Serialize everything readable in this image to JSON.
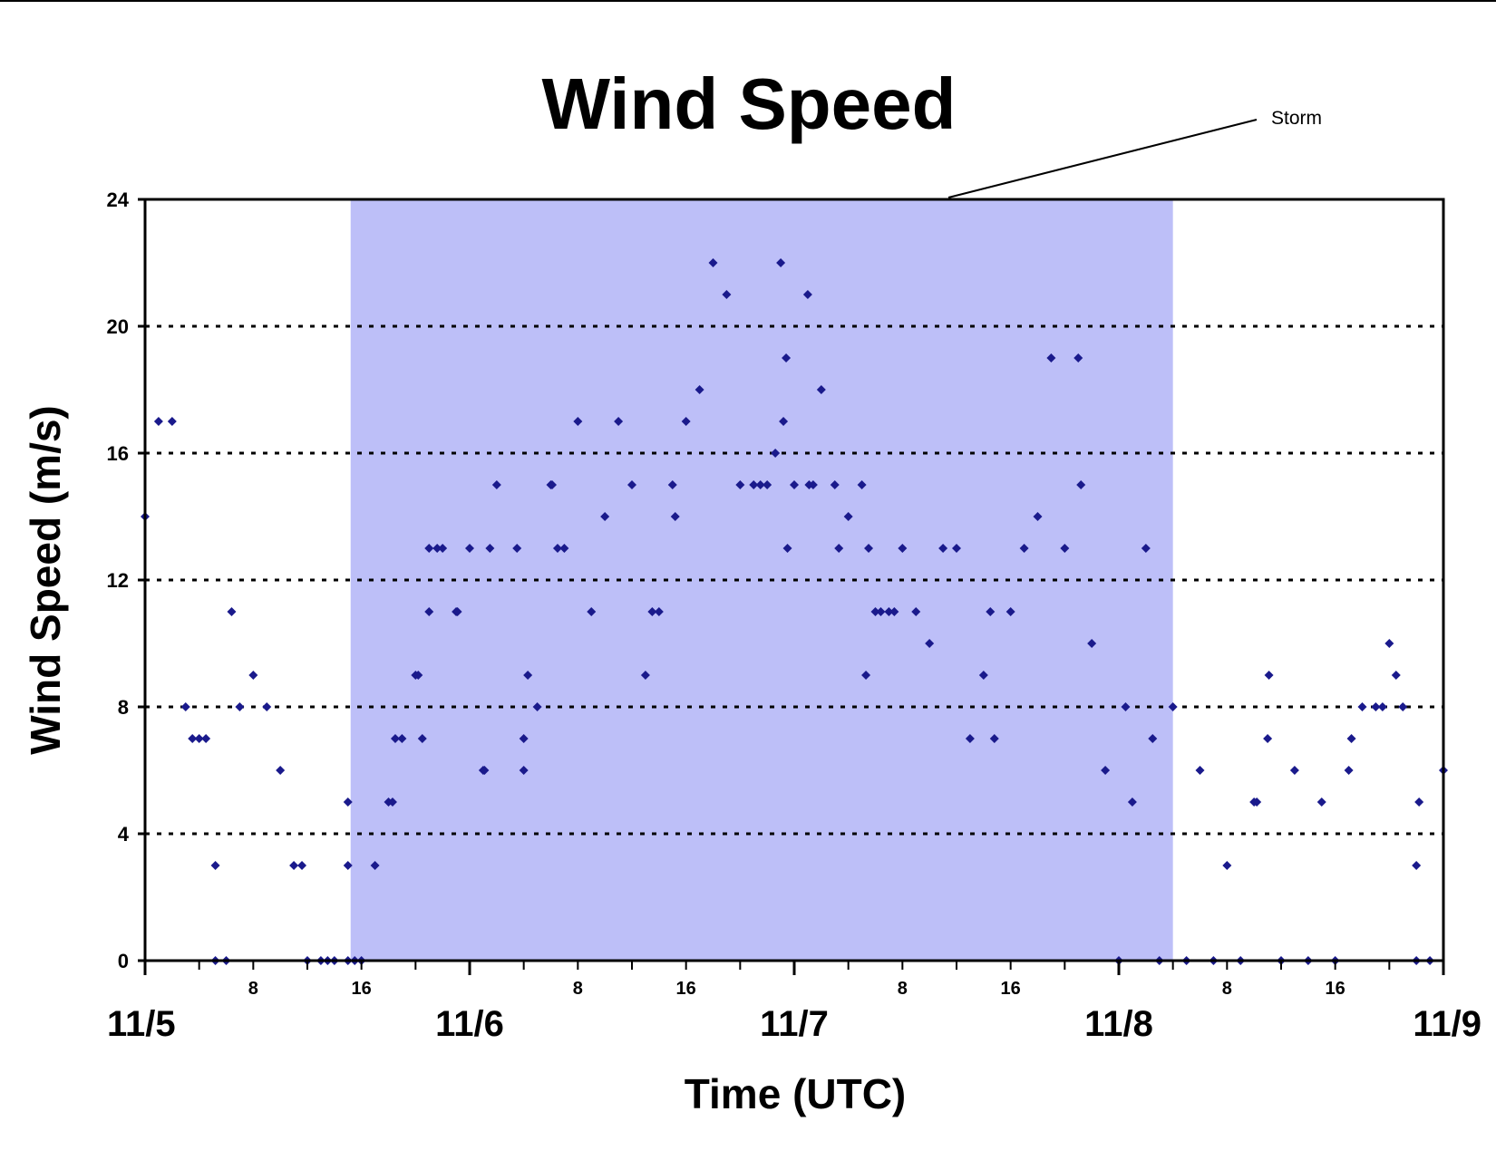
{
  "chart_data": {
    "type": "scatter",
    "title": "Wind Speed",
    "xlabel": "Time (UTC)",
    "ylabel": "Wind Speed (m/s)",
    "xlim": [
      0,
      96
    ],
    "ylim": [
      0,
      24
    ],
    "yticks": [
      0,
      4,
      8,
      12,
      16,
      20,
      24
    ],
    "x_minor_ticks": [
      {
        "x": 8,
        "label": "8"
      },
      {
        "x": 16,
        "label": "16"
      },
      {
        "x": 32,
        "label": "8"
      },
      {
        "x": 40,
        "label": "16"
      },
      {
        "x": 56,
        "label": "8"
      },
      {
        "x": 64,
        "label": "16"
      },
      {
        "x": 80,
        "label": "8"
      },
      {
        "x": 88,
        "label": "16"
      }
    ],
    "x_major_labels": [
      {
        "x": 0,
        "label": "11/5"
      },
      {
        "x": 24,
        "label": "11/6"
      },
      {
        "x": 48,
        "label": "11/7"
      },
      {
        "x": 72,
        "label": "11/8"
      },
      {
        "x": 96,
        "label": "11/9"
      }
    ],
    "grid": "horizontal dotted",
    "marker_color": "#1a1a8c",
    "shading": {
      "label": "Storm",
      "x_start": 15.2,
      "x_end": 76,
      "color": "#bdbff8"
    },
    "annotation": {
      "text": "Storm"
    },
    "x_unit": "hours since 11/5 00:00 UTC",
    "points": [
      [
        0,
        14
      ],
      [
        1,
        17
      ],
      [
        2,
        17
      ],
      [
        3,
        8
      ],
      [
        3.5,
        7
      ],
      [
        4,
        7
      ],
      [
        4.5,
        7
      ],
      [
        5.2,
        3
      ],
      [
        5.2,
        0
      ],
      [
        6,
        0
      ],
      [
        6.4,
        11
      ],
      [
        7,
        8
      ],
      [
        8,
        9
      ],
      [
        9,
        8
      ],
      [
        10,
        6
      ],
      [
        11,
        3
      ],
      [
        11.6,
        3
      ],
      [
        12,
        0
      ],
      [
        13,
        0
      ],
      [
        13.5,
        0
      ],
      [
        14,
        0
      ],
      [
        15,
        5
      ],
      [
        15,
        3
      ],
      [
        15,
        0
      ],
      [
        15.5,
        0
      ],
      [
        16,
        0
      ],
      [
        17,
        3
      ],
      [
        18,
        5
      ],
      [
        18.3,
        5
      ],
      [
        18.5,
        7
      ],
      [
        19,
        7
      ],
      [
        20,
        9
      ],
      [
        20.2,
        9
      ],
      [
        20.5,
        7
      ],
      [
        21,
        11
      ],
      [
        21,
        13
      ],
      [
        21.6,
        13
      ],
      [
        22,
        13
      ],
      [
        23,
        11
      ],
      [
        23.1,
        11
      ],
      [
        24,
        13
      ],
      [
        25,
        6
      ],
      [
        25.1,
        6
      ],
      [
        25.5,
        13
      ],
      [
        26,
        15
      ],
      [
        27.5,
        13
      ],
      [
        28,
        6
      ],
      [
        28,
        7
      ],
      [
        28.3,
        9
      ],
      [
        29,
        8
      ],
      [
        30,
        15
      ],
      [
        30.1,
        15
      ],
      [
        30.5,
        13
      ],
      [
        31,
        13
      ],
      [
        32,
        17
      ],
      [
        33,
        11
      ],
      [
        34,
        14
      ],
      [
        35,
        17
      ],
      [
        36,
        15
      ],
      [
        37,
        9
      ],
      [
        37.5,
        11
      ],
      [
        38,
        11
      ],
      [
        39,
        15
      ],
      [
        39.2,
        14
      ],
      [
        40,
        17
      ],
      [
        41,
        18
      ],
      [
        42,
        22
      ],
      [
        43,
        21
      ],
      [
        44,
        15
      ],
      [
        45,
        15
      ],
      [
        45.5,
        15
      ],
      [
        46,
        15
      ],
      [
        46.6,
        16
      ],
      [
        47,
        22
      ],
      [
        47.2,
        17
      ],
      [
        47.4,
        19
      ],
      [
        47.5,
        13
      ],
      [
        48,
        15
      ],
      [
        49,
        21
      ],
      [
        49.1,
        15
      ],
      [
        49.4,
        15
      ],
      [
        50,
        18
      ],
      [
        51,
        15
      ],
      [
        51.3,
        13
      ],
      [
        52,
        14
      ],
      [
        53,
        15
      ],
      [
        53.3,
        9
      ],
      [
        53.5,
        13
      ],
      [
        54,
        11
      ],
      [
        54.4,
        11
      ],
      [
        55,
        11
      ],
      [
        55.4,
        11
      ],
      [
        56,
        13
      ],
      [
        57,
        11
      ],
      [
        58,
        10
      ],
      [
        59,
        13
      ],
      [
        60,
        13
      ],
      [
        61,
        7
      ],
      [
        62,
        9
      ],
      [
        62.5,
        11
      ],
      [
        62.8,
        7
      ],
      [
        64,
        11
      ],
      [
        65,
        13
      ],
      [
        66,
        14
      ],
      [
        67,
        19
      ],
      [
        68,
        13
      ],
      [
        69,
        19
      ],
      [
        69.2,
        15
      ],
      [
        70,
        10
      ],
      [
        71,
        6
      ],
      [
        72,
        0
      ],
      [
        72.5,
        8
      ],
      [
        73,
        5
      ],
      [
        74,
        13
      ],
      [
        74.5,
        7
      ],
      [
        75,
        0
      ],
      [
        76,
        8
      ],
      [
        77,
        0
      ],
      [
        78,
        6
      ],
      [
        79,
        0
      ],
      [
        80,
        3
      ],
      [
        81,
        0
      ],
      [
        82,
        5
      ],
      [
        82.2,
        5
      ],
      [
        83,
        7
      ],
      [
        83.1,
        9
      ],
      [
        84,
        0
      ],
      [
        85,
        6
      ],
      [
        86,
        0
      ],
      [
        87,
        5
      ],
      [
        88,
        0
      ],
      [
        89,
        6
      ],
      [
        89.2,
        7
      ],
      [
        90,
        8
      ],
      [
        91,
        8
      ],
      [
        91.5,
        8
      ],
      [
        92,
        10
      ],
      [
        92.5,
        9
      ],
      [
        93,
        8
      ],
      [
        94,
        3
      ],
      [
        94,
        0
      ],
      [
        94.2,
        5
      ],
      [
        95,
        0
      ],
      [
        96,
        6
      ]
    ]
  }
}
